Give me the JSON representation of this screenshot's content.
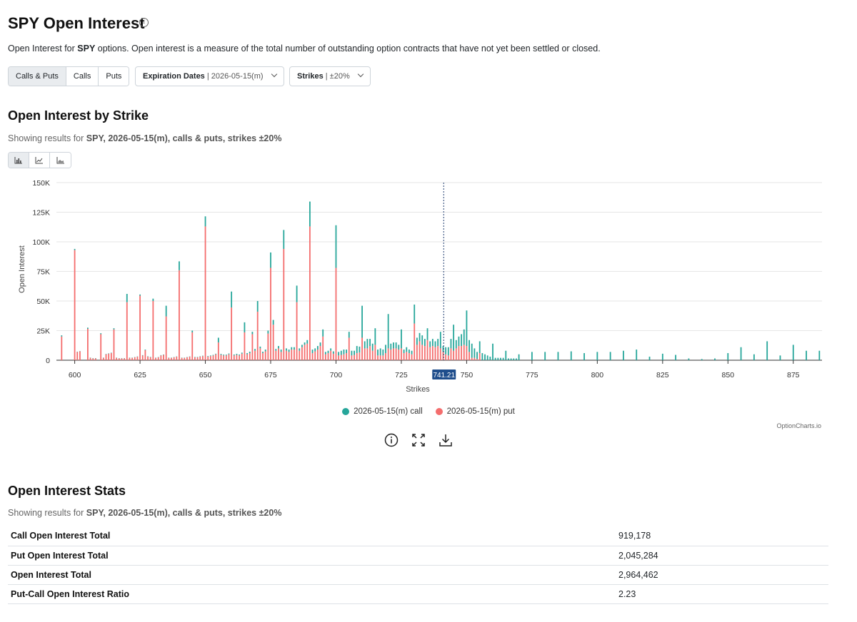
{
  "header": {
    "title": "SPY Open Interest",
    "info_glyph": "i",
    "desc_prefix": "Open Interest for ",
    "desc_ticker": "SPY",
    "desc_suffix": " options. Open interest is a measure of the total number of outstanding option contracts that have not yet been settled or closed."
  },
  "filters": {
    "type_tabs": [
      {
        "label": "Calls & Puts",
        "active": true
      },
      {
        "label": "Calls",
        "active": false
      },
      {
        "label": "Puts",
        "active": false
      }
    ],
    "expiration": {
      "label": "Expiration Dates",
      "value": "| 2026-05-15(m)"
    },
    "strikes": {
      "label": "Strikes",
      "value": "| ±20%"
    }
  },
  "chart_section": {
    "title": "Open Interest by Strike",
    "showing_prefix": "Showing results for ",
    "showing_bold": "SPY, 2026-05-15(m), calls & puts, strikes ±20%",
    "chart_type_buttons": [
      "bar-chart-icon",
      "line-chart-icon",
      "area-chart-icon"
    ]
  },
  "chart_data": {
    "type": "bar",
    "stacked": true,
    "xlabel": "Strikes",
    "ylabel": "Open Interest",
    "xlim": [
      593,
      886
    ],
    "ylim": [
      0,
      150000
    ],
    "x_ticks": [
      600,
      625,
      650,
      675,
      700,
      725,
      750,
      775,
      800,
      825,
      850,
      875
    ],
    "y_ticks": [
      0,
      25000,
      50000,
      75000,
      100000,
      125000,
      150000
    ],
    "y_tick_labels": [
      "0",
      "25K",
      "50K",
      "75K",
      "100K",
      "125K",
      "150K"
    ],
    "current_price": 741.21,
    "current_price_label": "741.21",
    "grid": "horizontal",
    "legend_position": "bottom-center",
    "colors": {
      "call": "#26a69a",
      "put": "#f46d6d"
    },
    "series": [
      {
        "name": "2026-05-15(m) call",
        "color": "#26a69a"
      },
      {
        "name": "2026-05-15(m) put",
        "color": "#f46d6d"
      }
    ],
    "points": [
      [
        595,
        1000,
        20000
      ],
      [
        600,
        1000,
        93000
      ],
      [
        601,
        200,
        7000
      ],
      [
        602,
        200,
        7500
      ],
      [
        605,
        1000,
        26500
      ],
      [
        606,
        200,
        2000
      ],
      [
        607,
        200,
        1500
      ],
      [
        608,
        200,
        1500
      ],
      [
        610,
        800,
        22000
      ],
      [
        611,
        200,
        2000
      ],
      [
        612,
        300,
        5000
      ],
      [
        613,
        300,
        5500
      ],
      [
        614,
        300,
        6000
      ],
      [
        615,
        1000,
        26000
      ],
      [
        616,
        200,
        2000
      ],
      [
        617,
        200,
        1500
      ],
      [
        618,
        200,
        1500
      ],
      [
        619,
        200,
        1500
      ],
      [
        620,
        7000,
        49000
      ],
      [
        621,
        200,
        2000
      ],
      [
        622,
        200,
        2000
      ],
      [
        623,
        200,
        2500
      ],
      [
        624,
        200,
        3000
      ],
      [
        625,
        1000,
        54500
      ],
      [
        626,
        300,
        4000
      ],
      [
        627,
        500,
        8500
      ],
      [
        628,
        300,
        3000
      ],
      [
        629,
        300,
        2500
      ],
      [
        630,
        2000,
        50000
      ],
      [
        631,
        200,
        2000
      ],
      [
        632,
        200,
        2500
      ],
      [
        633,
        300,
        4000
      ],
      [
        634,
        300,
        4500
      ],
      [
        635,
        9000,
        37000
      ],
      [
        636,
        200,
        2000
      ],
      [
        637,
        200,
        2000
      ],
      [
        638,
        200,
        2500
      ],
      [
        639,
        200,
        3000
      ],
      [
        640,
        7500,
        76000
      ],
      [
        641,
        200,
        2000
      ],
      [
        642,
        200,
        2000
      ],
      [
        643,
        200,
        2500
      ],
      [
        644,
        200,
        3000
      ],
      [
        645,
        1500,
        23500
      ],
      [
        646,
        300,
        2500
      ],
      [
        647,
        300,
        2500
      ],
      [
        648,
        300,
        3000
      ],
      [
        649,
        300,
        3500
      ],
      [
        650,
        8500,
        113000
      ],
      [
        651,
        500,
        3000
      ],
      [
        652,
        500,
        3500
      ],
      [
        653,
        500,
        4000
      ],
      [
        654,
        500,
        5000
      ],
      [
        655,
        4000,
        15000
      ],
      [
        656,
        800,
        4500
      ],
      [
        657,
        700,
        4000
      ],
      [
        658,
        700,
        4000
      ],
      [
        659,
        700,
        5000
      ],
      [
        660,
        13500,
        44500
      ],
      [
        661,
        800,
        4000
      ],
      [
        662,
        900,
        4500
      ],
      [
        663,
        800,
        4000
      ],
      [
        664,
        900,
        5500
      ],
      [
        665,
        8500,
        23500
      ],
      [
        666,
        1000,
        5000
      ],
      [
        667,
        1200,
        6000
      ],
      [
        668,
        2000,
        22000
      ],
      [
        669,
        1500,
        8000
      ],
      [
        670,
        9000,
        41000
      ],
      [
        671,
        1500,
        10000
      ],
      [
        672,
        1200,
        6000
      ],
      [
        673,
        1500,
        7500
      ],
      [
        674,
        2500,
        22500
      ],
      [
        675,
        13000,
        78000
      ],
      [
        676,
        4000,
        30000
      ],
      [
        677,
        1500,
        8000
      ],
      [
        678,
        2000,
        10000
      ],
      [
        679,
        2000,
        7000
      ],
      [
        680,
        16000,
        94000
      ],
      [
        681,
        2000,
        8000
      ],
      [
        682,
        2000,
        7000
      ],
      [
        683,
        2000,
        9000
      ],
      [
        684,
        2000,
        9000
      ],
      [
        685,
        14000,
        49000
      ],
      [
        686,
        2000,
        8000
      ],
      [
        687,
        2000,
        11000
      ],
      [
        688,
        2000,
        13000
      ],
      [
        689,
        3000,
        14000
      ],
      [
        690,
        21000,
        113000
      ],
      [
        691,
        3000,
        6000
      ],
      [
        692,
        2500,
        7500
      ],
      [
        693,
        3000,
        9000
      ],
      [
        694,
        3000,
        12000
      ],
      [
        695,
        6000,
        20000
      ],
      [
        696,
        2000,
        5000
      ],
      [
        697,
        2000,
        6000
      ],
      [
        698,
        2000,
        8000
      ],
      [
        699,
        2000,
        5500
      ],
      [
        700,
        36000,
        78000
      ],
      [
        701,
        3000,
        4000
      ],
      [
        702,
        3500,
        4500
      ],
      [
        703,
        4000,
        5000
      ],
      [
        704,
        3000,
        6000
      ],
      [
        705,
        5000,
        19000
      ],
      [
        706,
        4000,
        4000
      ],
      [
        707,
        3500,
        4500
      ],
      [
        708,
        6000,
        6000
      ],
      [
        709,
        5000,
        6500
      ],
      [
        710,
        27000,
        19000
      ],
      [
        711,
        6000,
        10000
      ],
      [
        712,
        8000,
        10000
      ],
      [
        713,
        6000,
        12000
      ],
      [
        714,
        6000,
        8000
      ],
      [
        715,
        14000,
        13000
      ],
      [
        716,
        5000,
        4000
      ],
      [
        717,
        6000,
        4000
      ],
      [
        718,
        5000,
        4000
      ],
      [
        719,
        7000,
        6000
      ],
      [
        720,
        29000,
        10000
      ],
      [
        721,
        5000,
        9000
      ],
      [
        722,
        5000,
        10000
      ],
      [
        723,
        5000,
        10000
      ],
      [
        724,
        4000,
        9000
      ],
      [
        725,
        16000,
        10000
      ],
      [
        726,
        3000,
        6000
      ],
      [
        727,
        4000,
        7000
      ],
      [
        728,
        3000,
        6000
      ],
      [
        729,
        3000,
        5000
      ],
      [
        730,
        16000,
        31000
      ],
      [
        731,
        6000,
        13000
      ],
      [
        732,
        7000,
        16000
      ],
      [
        733,
        8000,
        13000
      ],
      [
        734,
        6000,
        12000
      ],
      [
        735,
        10000,
        17000
      ],
      [
        736,
        5000,
        11000
      ],
      [
        737,
        6000,
        12000
      ],
      [
        738,
        5000,
        11000
      ],
      [
        739,
        6000,
        12000
      ],
      [
        740,
        14000,
        10000
      ],
      [
        741,
        5000,
        7000
      ],
      [
        742,
        6000,
        5000
      ],
      [
        743,
        7000,
        4000
      ],
      [
        744,
        8000,
        10000
      ],
      [
        745,
        22000,
        8000
      ],
      [
        746,
        7000,
        10000
      ],
      [
        747,
        8000,
        12000
      ],
      [
        748,
        10000,
        12000
      ],
      [
        749,
        13000,
        13000
      ],
      [
        750,
        30000,
        12000
      ],
      [
        751,
        10000,
        7000
      ],
      [
        752,
        12000,
        2000
      ],
      [
        753,
        8000,
        2000
      ],
      [
        754,
        6000,
        1000
      ],
      [
        755,
        10000,
        6000
      ],
      [
        756,
        6000,
        0
      ],
      [
        757,
        5000,
        0
      ],
      [
        758,
        4000,
        0
      ],
      [
        759,
        3000,
        0
      ],
      [
        760,
        14000,
        0
      ],
      [
        761,
        2000,
        0
      ],
      [
        762,
        2000,
        0
      ],
      [
        763,
        2000,
        0
      ],
      [
        764,
        2000,
        0
      ],
      [
        765,
        8000,
        0
      ],
      [
        766,
        1500,
        0
      ],
      [
        767,
        1500,
        0
      ],
      [
        768,
        1500,
        0
      ],
      [
        769,
        1500,
        0
      ],
      [
        770,
        5000,
        0
      ],
      [
        775,
        7000,
        0
      ],
      [
        780,
        7000,
        0
      ],
      [
        785,
        7000,
        0
      ],
      [
        790,
        7500,
        0
      ],
      [
        795,
        6000,
        0
      ],
      [
        800,
        7000,
        0
      ],
      [
        805,
        7000,
        0
      ],
      [
        810,
        8000,
        0
      ],
      [
        815,
        9000,
        0
      ],
      [
        820,
        3000,
        0
      ],
      [
        825,
        5500,
        0
      ],
      [
        830,
        4500,
        0
      ],
      [
        835,
        1500,
        0
      ],
      [
        840,
        1000,
        0
      ],
      [
        845,
        1500,
        0
      ],
      [
        850,
        6000,
        0
      ],
      [
        855,
        11000,
        0
      ],
      [
        860,
        5000,
        0
      ],
      [
        865,
        16000,
        0
      ],
      [
        870,
        4000,
        0
      ],
      [
        875,
        13000,
        0
      ],
      [
        880,
        8000,
        0
      ],
      [
        885,
        8000,
        0
      ]
    ]
  },
  "legend": {
    "call_label": "2026-05-15(m) call",
    "put_label": "2026-05-15(m) put"
  },
  "credit": "OptionCharts.io",
  "tools": [
    "info-circle-icon",
    "expand-icon",
    "download-icon"
  ],
  "stats_section": {
    "title": "Open Interest Stats",
    "showing_prefix": "Showing results for ",
    "showing_bold": "SPY, 2026-05-15(m), calls & puts, strikes ±20%",
    "rows": [
      {
        "label": "Call Open Interest Total",
        "value": "919,178"
      },
      {
        "label": "Put Open Interest Total",
        "value": "2,045,284"
      },
      {
        "label": "Open Interest Total",
        "value": "2,964,462"
      },
      {
        "label": "Put-Call Open Interest Ratio",
        "value": "2.23"
      }
    ]
  }
}
